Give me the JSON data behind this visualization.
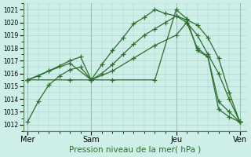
{
  "bg_color": "#ceeee8",
  "grid_color": "#a8d5cc",
  "line_color": "#2d6e2d",
  "xlabel": "Pression niveau de la mer( hPa )",
  "ylim": [
    1011.5,
    1021.5
  ],
  "yticks": [
    1012,
    1013,
    1014,
    1015,
    1016,
    1017,
    1018,
    1019,
    1020,
    1021
  ],
  "xtick_labels": [
    "Mer",
    "Sam",
    "Jeu",
    "Ven"
  ],
  "xtick_positions": [
    0,
    3,
    7,
    10
  ],
  "vline_positions": [
    0,
    3,
    7,
    10
  ],
  "series": [
    {
      "x": [
        0,
        0.5,
        1,
        1.5,
        2,
        2.5,
        3,
        3.5,
        4,
        4.5,
        5,
        5.5,
        6,
        6.5,
        7,
        7.5,
        8,
        8.5,
        9,
        9.5,
        10
      ],
      "y": [
        1012.2,
        1013.8,
        1015.1,
        1015.8,
        1016.3,
        1016.5,
        1015.5,
        1016.7,
        1017.8,
        1018.8,
        1019.9,
        1020.4,
        1021.0,
        1020.7,
        1020.5,
        1020.2,
        1019.8,
        1018.8,
        1017.2,
        1014.5,
        1012.2
      ]
    },
    {
      "x": [
        0,
        0.5,
        1,
        1.5,
        2,
        2.5,
        3,
        3.5,
        4,
        4.5,
        5,
        5.5,
        6,
        6.5,
        7,
        7.5,
        8,
        8.5,
        9,
        9.5,
        10
      ],
      "y": [
        1015.5,
        1015.8,
        1016.2,
        1016.6,
        1017.0,
        1017.3,
        1015.5,
        1016.0,
        1016.7,
        1017.5,
        1018.3,
        1019.0,
        1019.5,
        1020.0,
        1020.5,
        1020.0,
        1019.0,
        1017.5,
        1016.0,
        1014.0,
        1012.2
      ]
    },
    {
      "x": [
        0,
        1,
        2,
        3,
        4,
        5,
        6,
        7,
        7.5,
        8,
        8.5,
        9,
        9.5,
        10
      ],
      "y": [
        1015.5,
        1016.2,
        1016.8,
        1015.5,
        1016.2,
        1017.2,
        1018.2,
        1019.0,
        1020.0,
        1018.0,
        1017.3,
        1013.8,
        1013.0,
        1012.2
      ]
    },
    {
      "x": [
        0,
        2,
        4,
        6,
        7,
        7.5,
        8,
        8.5,
        9,
        9.5,
        10
      ],
      "y": [
        1015.5,
        1015.5,
        1015.5,
        1015.5,
        1021.0,
        1020.3,
        1017.8,
        1017.3,
        1013.2,
        1012.6,
        1012.2
      ]
    }
  ]
}
